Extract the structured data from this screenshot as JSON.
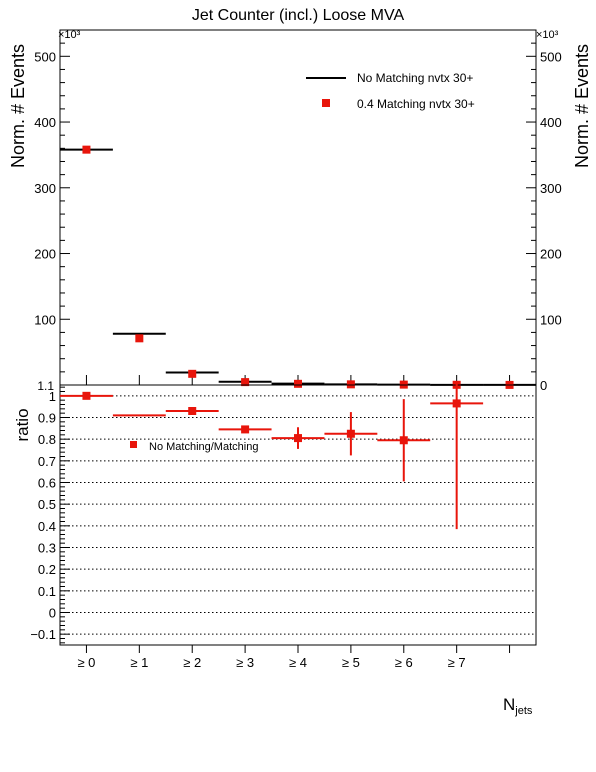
{
  "chart_data": [
    {
      "type": "line",
      "panel": "upper",
      "title": "Jet Counter (incl.) Loose MVA",
      "ylabel": "Norm. # Events",
      "yscale_label": "×10³",
      "y_multiplier": 1000,
      "ylim": [
        0,
        540
      ],
      "yticks": [
        100,
        200,
        300,
        400,
        500
      ],
      "right_yticks": [
        0,
        100,
        200,
        300,
        400,
        500
      ],
      "xlim": [
        -0.5,
        8.5
      ],
      "series": [
        {
          "name": "No Matching nvtx 30+",
          "style": "step",
          "color": "#000000",
          "x": [
            0,
            1,
            2,
            3,
            4,
            5,
            6,
            7,
            8
          ],
          "values": [
            358,
            78,
            19,
            5,
            2,
            1,
            0.5,
            0.2,
            0.1
          ]
        },
        {
          "name": "0.4 Matching nvtx 30+",
          "style": "marker",
          "color": "#e8150b",
          "x": [
            0,
            1,
            2,
            3,
            4,
            5,
            6,
            7,
            8
          ],
          "values": [
            358,
            71,
            17,
            4.4,
            1.8,
            1.0,
            0.6,
            0.3,
            0.15
          ]
        }
      ]
    },
    {
      "type": "scatter",
      "panel": "lower",
      "ylabel": "ratio",
      "xlabel": "N",
      "xlabel_sub": "jets",
      "ylim": [
        -0.15,
        1.05
      ],
      "yticks": [
        -0.1,
        0,
        0.1,
        0.2,
        0.3,
        0.4,
        0.5,
        0.6,
        0.7,
        0.8,
        0.9,
        1
      ],
      "ytick_labels": [
        "−0.1",
        "0",
        "0.1",
        "0.2",
        "0.3",
        "0.4",
        "0.5",
        "0.6",
        "0.7",
        "0.8",
        "0.9",
        "1"
      ],
      "categories": [
        "≥ 0",
        "≥ 1",
        "≥ 2",
        "≥ 3",
        "≥ 4",
        "≥ 5",
        "≥ 6",
        "≥ 7"
      ],
      "series": [
        {
          "name": "No Matching/Matching",
          "color": "#e8150b",
          "x": [
            0,
            1,
            2,
            3,
            4,
            5,
            6,
            7
          ],
          "values": [
            1.0,
            0.91,
            0.93,
            0.845,
            0.805,
            0.825,
            0.795,
            0.965
          ],
          "err_low": [
            0.005,
            0.002,
            0.01,
            0.015,
            0.05,
            0.1,
            0.19,
            0.58
          ],
          "err_high": [
            0.005,
            0.002,
            0.01,
            0.015,
            0.05,
            0.1,
            0.19,
            0.1
          ]
        }
      ]
    }
  ],
  "labels": {
    "title": "Jet Counter (incl.) Loose MVA",
    "upper_ylabel_left": "Norm. # Events",
    "upper_ylabel_right": "Norm. # Events",
    "upper_scale_left": "×10³",
    "upper_scale_right": "×10³",
    "legend_no_matching": "No Matching nvtx 30+",
    "legend_matching": "0.4 Matching nvtx 30+",
    "ratio_legend": "No Matching/Matching",
    "ratio_ylabel": "ratio",
    "upper_tick_zero_left": "1.1",
    "xlabel_main": "N",
    "xlabel_sub": "jets"
  },
  "colors": {
    "data_red": "#e8150b",
    "reference_black": "#000000",
    "frame": "#000000",
    "grid_dotted": "#000000"
  }
}
